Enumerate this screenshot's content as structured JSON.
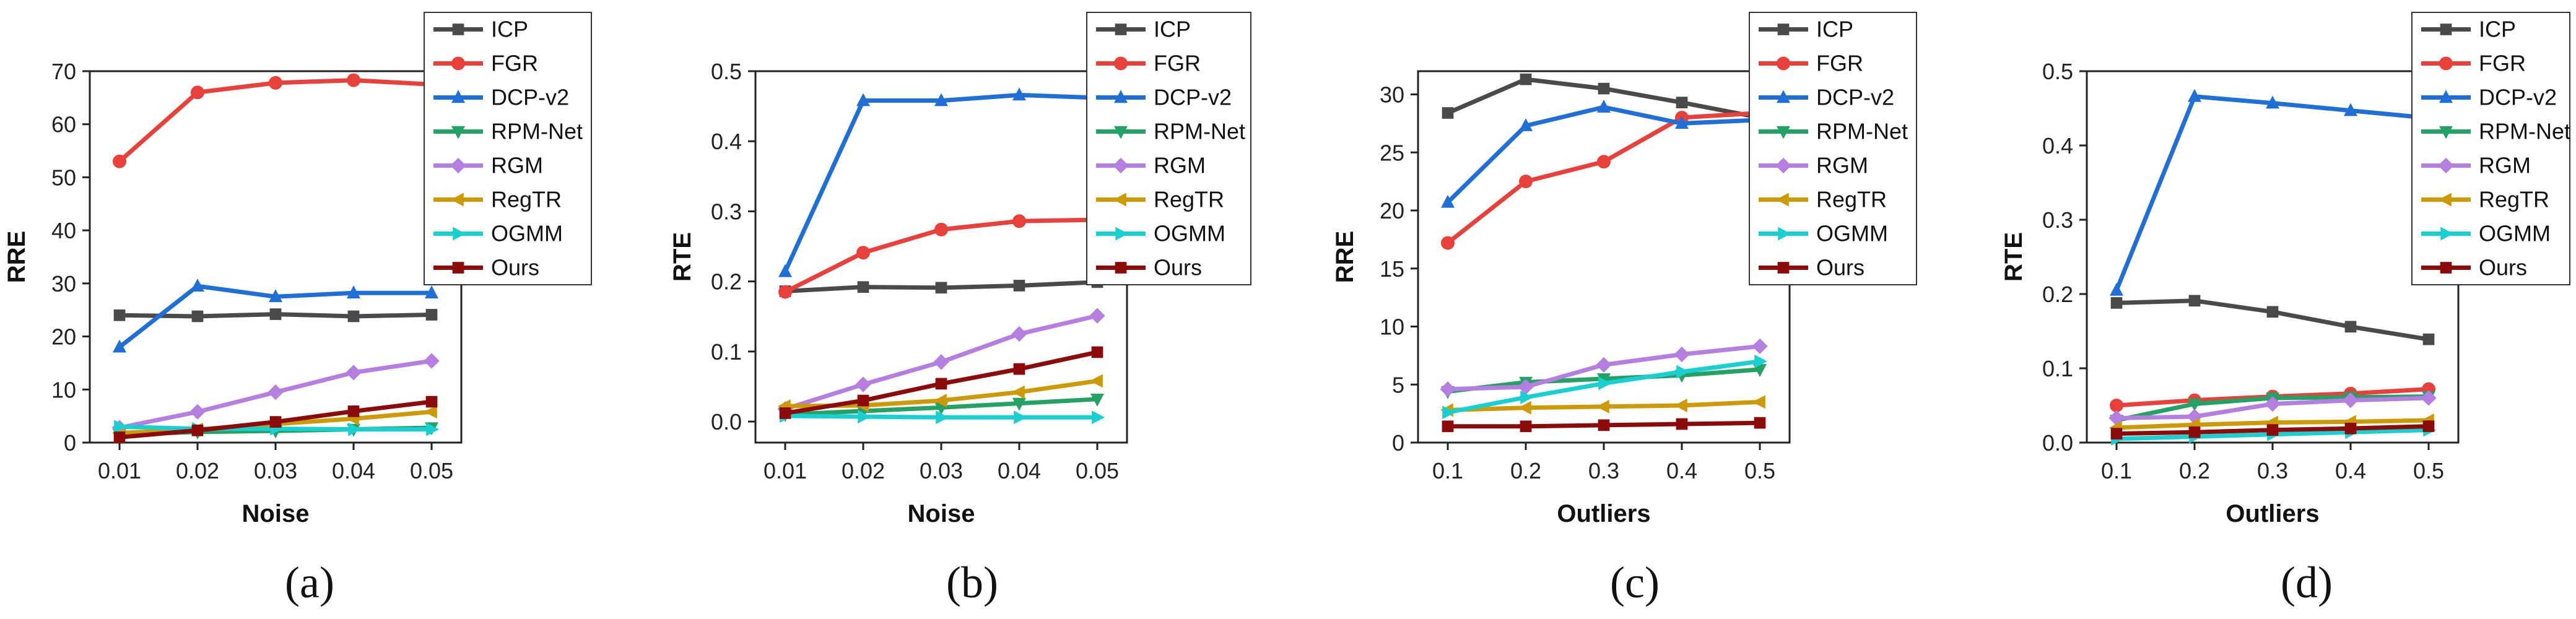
{
  "figure": {
    "colors": {
      "ICP": "#4a4a4a",
      "FGR": "#e8403a",
      "DCP-v2": "#1f6fd6",
      "RPM-Net": "#24a266",
      "RGM": "#b57fe0",
      "RegTR": "#cc9a06",
      "OGMM": "#19cfcf",
      "Ours": "#8b0a0a"
    },
    "markers": {
      "ICP": "square",
      "FGR": "circle",
      "DCP-v2": "triangle-up",
      "RPM-Net": "triangle-down",
      "RGM": "diamond",
      "RegTR": "triangle-left",
      "OGMM": "triangle-right",
      "Ours": "square"
    }
  },
  "chart_data": [
    {
      "id": "a",
      "caption": "(a)",
      "type": "line",
      "xlabel": "Noise",
      "ylabel": "RRE",
      "x": [
        0.01,
        0.02,
        0.03,
        0.04,
        0.05
      ],
      "xticks": [
        "0.01",
        "0.02",
        "0.03",
        "0.04",
        "0.05"
      ],
      "ylim": [
        0,
        70
      ],
      "yticks": [
        "0",
        "10",
        "20",
        "30",
        "40",
        "50",
        "60",
        "70"
      ],
      "yticks_values": [
        0,
        10,
        20,
        30,
        40,
        50,
        60,
        70
      ],
      "legend": "top-right",
      "series": [
        {
          "name": "ICP",
          "values": [
            24.0,
            23.8,
            24.2,
            23.8,
            24.1
          ]
        },
        {
          "name": "FGR",
          "values": [
            53.0,
            66.0,
            67.8,
            68.3,
            67.5
          ]
        },
        {
          "name": "DCP-v2",
          "values": [
            18.0,
            29.5,
            27.5,
            28.2,
            28.2
          ]
        },
        {
          "name": "RPM-Net",
          "values": [
            1.5,
            2.0,
            2.2,
            2.5,
            2.8
          ]
        },
        {
          "name": "RGM",
          "values": [
            2.8,
            5.8,
            9.5,
            13.2,
            15.4
          ]
        },
        {
          "name": "RegTR",
          "values": [
            1.8,
            2.5,
            3.5,
            4.5,
            5.8
          ]
        },
        {
          "name": "OGMM",
          "values": [
            3.0,
            2.6,
            2.6,
            2.5,
            2.5
          ]
        },
        {
          "name": "Ours",
          "values": [
            1.0,
            2.3,
            3.9,
            5.9,
            7.7
          ]
        }
      ]
    },
    {
      "id": "b",
      "caption": "(b)",
      "type": "line",
      "xlabel": "Noise",
      "ylabel": "RTE",
      "x": [
        0.01,
        0.02,
        0.03,
        0.04,
        0.05
      ],
      "xticks": [
        "0.01",
        "0.02",
        "0.03",
        "0.04",
        "0.05"
      ],
      "ylim": [
        -0.03,
        0.5
      ],
      "yticks": [
        "0.0",
        "0.1",
        "0.2",
        "0.3",
        "0.4",
        "0.5"
      ],
      "yticks_values": [
        0.0,
        0.1,
        0.2,
        0.3,
        0.4,
        0.5
      ],
      "legend": "top-right",
      "series": [
        {
          "name": "ICP",
          "values": [
            0.186,
            0.192,
            0.191,
            0.194,
            0.199
          ]
        },
        {
          "name": "FGR",
          "values": [
            0.185,
            0.241,
            0.274,
            0.286,
            0.288
          ]
        },
        {
          "name": "DCP-v2",
          "values": [
            0.214,
            0.458,
            0.458,
            0.466,
            0.462
          ]
        },
        {
          "name": "RPM-Net",
          "values": [
            0.01,
            0.015,
            0.02,
            0.026,
            0.032
          ]
        },
        {
          "name": "RGM",
          "values": [
            0.018,
            0.053,
            0.085,
            0.125,
            0.151
          ]
        },
        {
          "name": "RegTR",
          "values": [
            0.022,
            0.023,
            0.03,
            0.042,
            0.058
          ]
        },
        {
          "name": "OGMM",
          "values": [
            0.008,
            0.007,
            0.006,
            0.006,
            0.006
          ]
        },
        {
          "name": "Ours",
          "values": [
            0.012,
            0.03,
            0.054,
            0.075,
            0.099
          ]
        }
      ]
    },
    {
      "id": "c",
      "caption": "(c)",
      "type": "line",
      "xlabel": "Outliers",
      "ylabel": "RRE",
      "x": [
        0.1,
        0.2,
        0.3,
        0.4,
        0.5
      ],
      "xticks": [
        "0.1",
        "0.2",
        "0.3",
        "0.4",
        "0.5"
      ],
      "ylim": [
        0,
        32
      ],
      "yticks": [
        "0",
        "5",
        "10",
        "15",
        "20",
        "25",
        "30"
      ],
      "yticks_values": [
        0,
        5,
        10,
        15,
        20,
        25,
        30
      ],
      "legend": "top-right",
      "series": [
        {
          "name": "ICP",
          "values": [
            28.4,
            31.3,
            30.5,
            29.3,
            28.0
          ]
        },
        {
          "name": "FGR",
          "values": [
            17.2,
            22.5,
            24.2,
            28.0,
            28.4
          ]
        },
        {
          "name": "DCP-v2",
          "values": [
            20.7,
            27.3,
            28.9,
            27.5,
            27.8
          ]
        },
        {
          "name": "RPM-Net",
          "values": [
            4.4,
            5.2,
            5.5,
            5.8,
            6.3
          ]
        },
        {
          "name": "RGM",
          "values": [
            4.6,
            4.8,
            6.7,
            7.6,
            8.3
          ]
        },
        {
          "name": "RegTR",
          "values": [
            2.8,
            3.0,
            3.1,
            3.2,
            3.5
          ]
        },
        {
          "name": "OGMM",
          "values": [
            2.6,
            3.9,
            5.1,
            6.1,
            7.0
          ]
        },
        {
          "name": "Ours",
          "values": [
            1.4,
            1.4,
            1.5,
            1.6,
            1.7
          ]
        }
      ]
    },
    {
      "id": "d",
      "caption": "(d)",
      "type": "line",
      "xlabel": "Outliers",
      "ylabel": "RTE",
      "x": [
        0.1,
        0.2,
        0.3,
        0.4,
        0.5
      ],
      "xticks": [
        "0.1",
        "0.2",
        "0.3",
        "0.4",
        "0.5"
      ],
      "ylim": [
        0,
        0.5
      ],
      "yticks": [
        "0.0",
        "0.1",
        "0.2",
        "0.3",
        "0.4",
        "0.5"
      ],
      "yticks_values": [
        0.0,
        0.1,
        0.2,
        0.3,
        0.4,
        0.5
      ],
      "legend": "top-right",
      "series": [
        {
          "name": "ICP",
          "values": [
            0.188,
            0.191,
            0.176,
            0.156,
            0.139
          ]
        },
        {
          "name": "FGR",
          "values": [
            0.05,
            0.057,
            0.062,
            0.066,
            0.072
          ]
        },
        {
          "name": "DCP-v2",
          "values": [
            0.205,
            0.466,
            0.457,
            0.447,
            0.437
          ]
        },
        {
          "name": "RPM-Net",
          "values": [
            0.03,
            0.052,
            0.06,
            0.061,
            0.062
          ]
        },
        {
          "name": "RGM",
          "values": [
            0.033,
            0.035,
            0.052,
            0.057,
            0.06
          ]
        },
        {
          "name": "RegTR",
          "values": [
            0.02,
            0.024,
            0.027,
            0.028,
            0.03
          ]
        },
        {
          "name": "OGMM",
          "values": [
            0.005,
            0.008,
            0.011,
            0.014,
            0.017
          ]
        },
        {
          "name": "Ours",
          "values": [
            0.012,
            0.014,
            0.017,
            0.019,
            0.022
          ]
        }
      ]
    }
  ]
}
